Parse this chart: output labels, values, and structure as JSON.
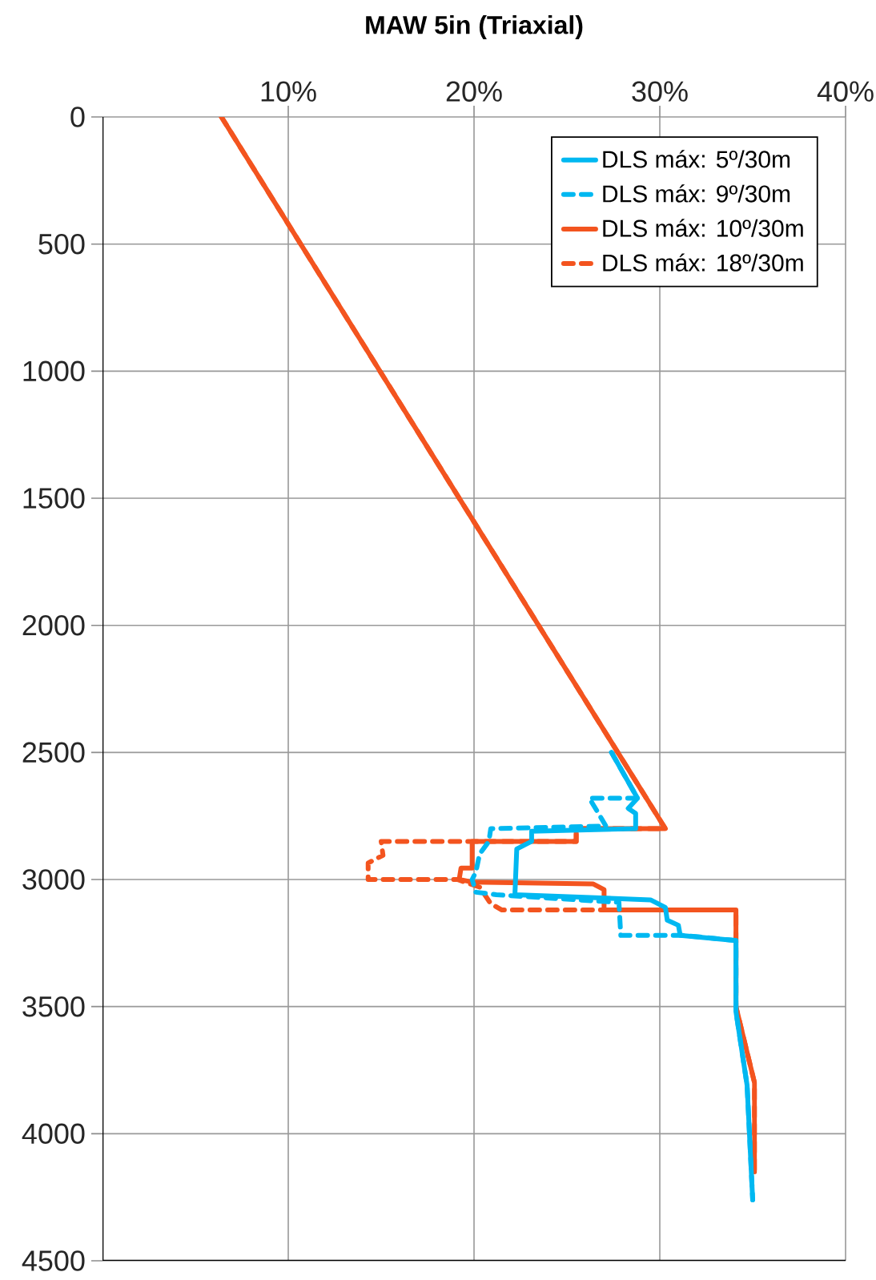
{
  "chart_data": {
    "type": "line",
    "title": "MAW 5in (Triaxial)",
    "series": [
      {
        "name": "DLS máx: 5º/30m",
        "color": "#00b8f1",
        "line_style": "solid",
        "x": [
          27.4,
          28.8,
          28.3,
          28.7,
          28.7,
          23.1,
          23.1,
          22.3,
          22.2,
          29.5,
          30.3,
          30.4,
          31.0,
          31.1,
          34.1,
          34.1,
          34.7,
          35.0
        ],
        "values": [
          2500,
          2680,
          2720,
          2740,
          2800,
          2810,
          2850,
          2880,
          3060,
          3080,
          3110,
          3160,
          3180,
          3220,
          3240,
          3520,
          3810,
          4260
        ]
      },
      {
        "name": "DLS máx: 9º/30m",
        "color": "#00b8f1",
        "line_style": "dashed",
        "x": [
          27.4,
          28.8,
          26.2,
          26.7,
          27.1,
          20.9,
          20.8,
          20.3,
          20.1,
          19.9,
          20.1,
          21.2,
          27.8,
          27.9,
          31.3,
          34.1,
          34.1,
          34.7,
          35.0
        ],
        "values": [
          2500,
          2680,
          2680,
          2740,
          2790,
          2800,
          2850,
          2900,
          2970,
          3000,
          3050,
          3060,
          3090,
          3220,
          3220,
          3240,
          3520,
          3810,
          4260
        ]
      },
      {
        "name": "DLS máx: 10º/30m",
        "color": "#f3541f",
        "line_style": "solid",
        "x": [
          6.4,
          30.3,
          25.5,
          25.5,
          19.9,
          19.9,
          19.3,
          19.2,
          19.9,
          26.4,
          27.0,
          27.0,
          34.1,
          34.1,
          35.1,
          35.1
        ],
        "values": [
          0,
          2800,
          2800,
          2850,
          2850,
          2955,
          2955,
          3000,
          3010,
          3017,
          3040,
          3120,
          3120,
          3500,
          3800,
          4150
        ]
      },
      {
        "name": "DLS máx: 18º/30m",
        "color": "#f3541f",
        "line_style": "dashed",
        "x": [
          6.4,
          30.3,
          25.5,
          25.5,
          15.0,
          15.1,
          14.3,
          14.3,
          19.1,
          20.3,
          20.9,
          21.5,
          34.1,
          34.1,
          35.1,
          35.1
        ],
        "values": [
          0,
          2800,
          2800,
          2850,
          2850,
          2905,
          2935,
          3000,
          3000,
          3030,
          3095,
          3120,
          3120,
          3500,
          3800,
          4150
        ]
      }
    ],
    "xlim": [
      0,
      40
    ],
    "xticks": [
      {
        "value": 10,
        "label": "10%"
      },
      {
        "value": 20,
        "label": "20%"
      },
      {
        "value": 30,
        "label": "30%"
      },
      {
        "value": 40,
        "label": "40%"
      }
    ],
    "ylim": [
      4500,
      0
    ],
    "yticks": [
      0,
      500,
      1000,
      1500,
      2000,
      2500,
      3000,
      3500,
      4000,
      4500
    ],
    "grid": true,
    "legend": "top right",
    "marker": "none"
  }
}
